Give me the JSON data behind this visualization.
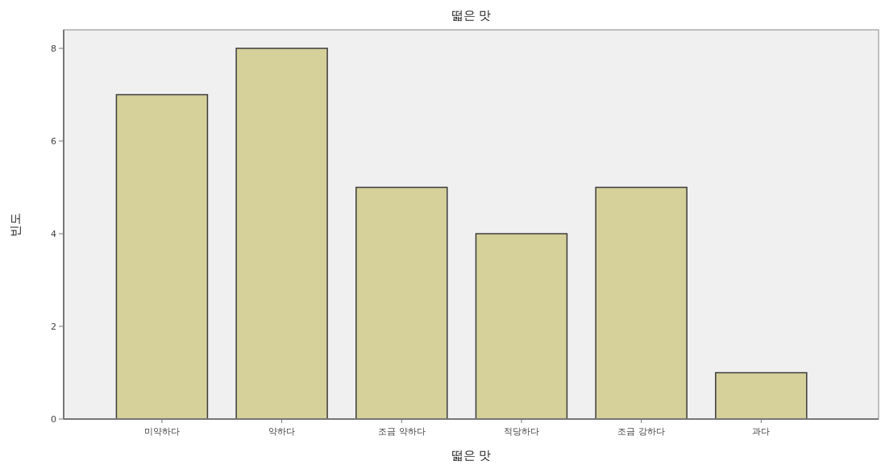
{
  "chart_data": {
    "type": "bar",
    "title": "떫은 맛",
    "xlabel": "떫은 맛",
    "ylabel": "빈도",
    "categories": [
      "미약하다",
      "약하다",
      "조금 약하다",
      "적당하다",
      "조금 강하다",
      "과다"
    ],
    "values": [
      7,
      8,
      5,
      4,
      5,
      1
    ],
    "color": "#d6d09a",
    "ylim": [
      0,
      8.4
    ],
    "yticks": [
      0,
      2,
      4,
      6,
      8
    ],
    "grid": false
  }
}
